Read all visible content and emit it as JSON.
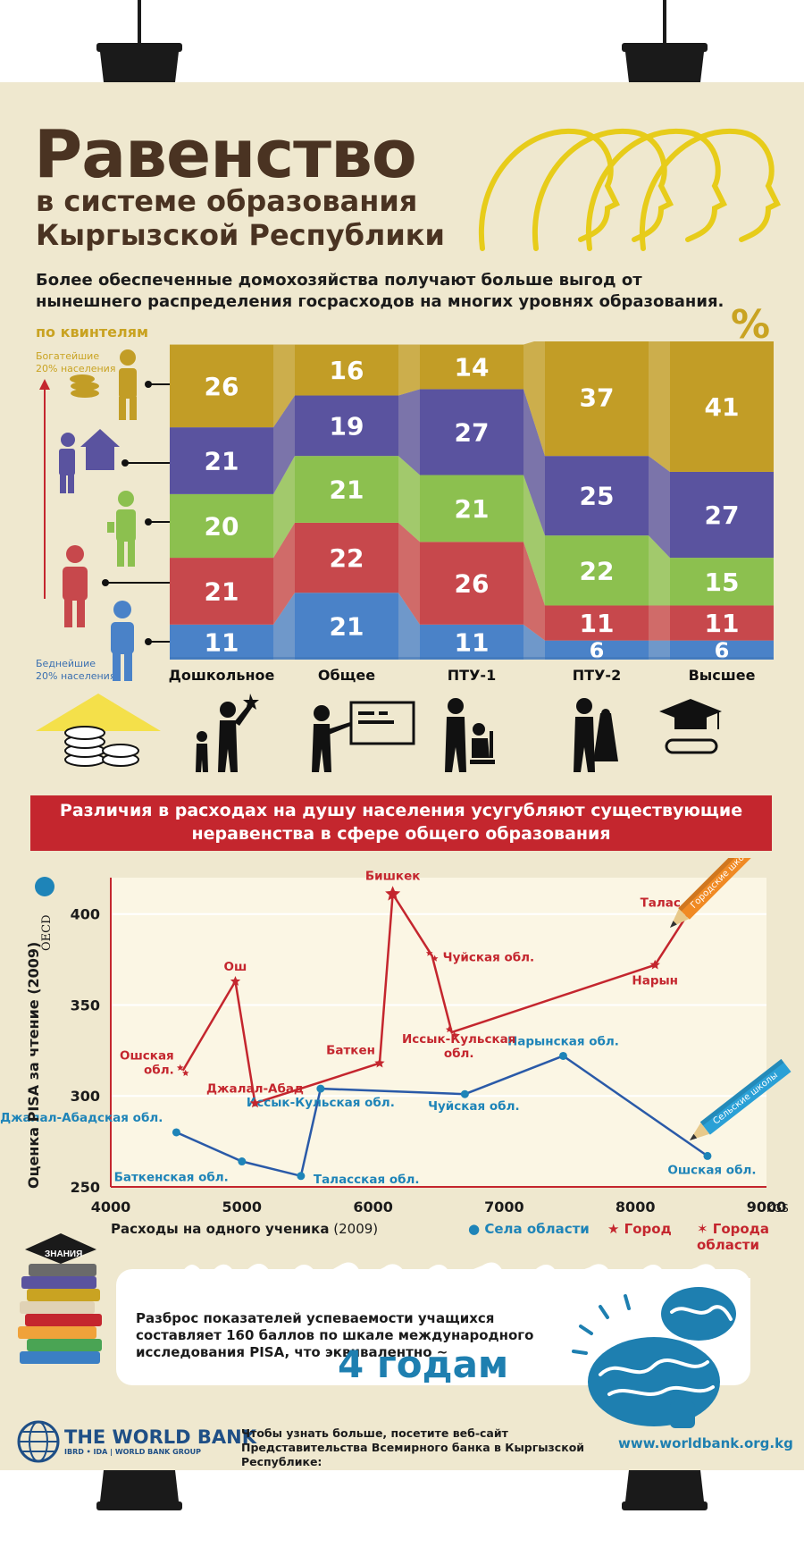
{
  "header": {
    "title": "Равенство",
    "subtitle_line1": "в системе образования",
    "subtitle_line2": "Кыргызской Республики"
  },
  "intro": "Более обеспеченные домохозяйства получают больше выгод от нынешнего распределения госрасходов на многих уровнях образования.",
  "quintiles": {
    "label": "по квинтелям",
    "unit": "%",
    "richest": "Богатейшие 20% населения",
    "poorest": "Беднейшие 20% населения"
  },
  "chart_data": [
    {
      "type": "bar",
      "stacked": true,
      "categories": [
        "Дошкольное",
        "Общее",
        "ПТУ-1",
        "ПТУ-2",
        "Высшее"
      ],
      "series": [
        {
          "values": [
            11,
            21,
            11,
            6,
            6
          ],
          "color": "#4a82c8"
        },
        {
          "values": [
            21,
            22,
            26,
            11,
            11
          ],
          "color": "#c7484c"
        },
        {
          "values": [
            20,
            21,
            21,
            22,
            15
          ],
          "color": "#8cc04f"
        },
        {
          "values": [
            21,
            19,
            27,
            25,
            27
          ],
          "color": "#5a539f"
        },
        {
          "values": [
            26,
            16,
            14,
            37,
            41
          ],
          "color": "#c29d26"
        }
      ]
    },
    {
      "type": "scatter",
      "xlabel": "Расходы на одного ученика",
      "xlabel_year": "(2009)",
      "ylabel": "Оценка PISA за чтение (2009)",
      "x_unit": "KGS",
      "xlim": [
        4000,
        9000
      ],
      "ylim": [
        250,
        420
      ],
      "x_ticks": [
        4000,
        5000,
        6000,
        7000,
        8000,
        9000
      ],
      "y_ticks": [
        250,
        300,
        350,
        400
      ],
      "series": [
        {
          "name": "Села области",
          "color": "#1e84b8",
          "points": [
            {
              "label": "Джалал-Абадская обл.",
              "x": 4500,
              "y": 280
            },
            {
              "label": "Баткенская обл.",
              "x": 5000,
              "y": 264
            },
            {
              "label": "Таласская обл.",
              "x": 5450,
              "y": 256
            },
            {
              "label": "Иссык-Кульская обл.",
              "x": 5600,
              "y": 304
            },
            {
              "label": "Чуйская обл.",
              "x": 6700,
              "y": 301
            },
            {
              "label": "Нарынская обл.",
              "x": 7450,
              "y": 322
            },
            {
              "label": "Ошская обл.",
              "x": 8550,
              "y": 267
            }
          ]
        },
        {
          "name": "Город",
          "color": "#c4262e",
          "points": [
            {
              "label": "Ош",
              "x": 4950,
              "y": 363
            },
            {
              "label": "Джалал-Абад",
              "x": 5100,
              "y": 296
            },
            {
              "label": "Баткен",
              "x": 6050,
              "y": 318
            },
            {
              "label": "Бишкек",
              "x": 6150,
              "y": 411
            },
            {
              "label": "Нарын",
              "x": 8150,
              "y": 372
            },
            {
              "label": "Талас",
              "x": 8400,
              "y": 400
            }
          ]
        },
        {
          "name": "Города области",
          "color": "#c4262e",
          "points": [
            {
              "label": "Ошская обл.",
              "x": 4550,
              "y": 314
            },
            {
              "label": "Чуйская обл.",
              "x": 6450,
              "y": 377
            },
            {
              "label": "Иссык-Кульская обл.",
              "x": 6600,
              "y": 335
            }
          ]
        }
      ]
    }
  ],
  "banner": {
    "line1": "Различия в расходах на душу населения усугубляют существующие",
    "line2": "неравенства в сфере общего образования"
  },
  "oecd": "OECD",
  "pencils": {
    "urban": "Городские школы",
    "rural": "Сельские школы"
  },
  "pisa": {
    "text": "Разброс показателей успеваемости учащихся составляет 160 баллов по шкале международного исследования PISA, что эквивалентно ~",
    "big": "4 годам",
    "books_label": "ЗНАНИЯ"
  },
  "footer": {
    "org": "THE WORLD BANK",
    "org_sub": "IBRD • IDA | WORLD BANK GROUP",
    "text": "Чтобы узнать больше, посетите веб-сайт Представительства Всемирного банка в Кыргызской Республике:",
    "url": "www.worldbank.org.kg"
  }
}
